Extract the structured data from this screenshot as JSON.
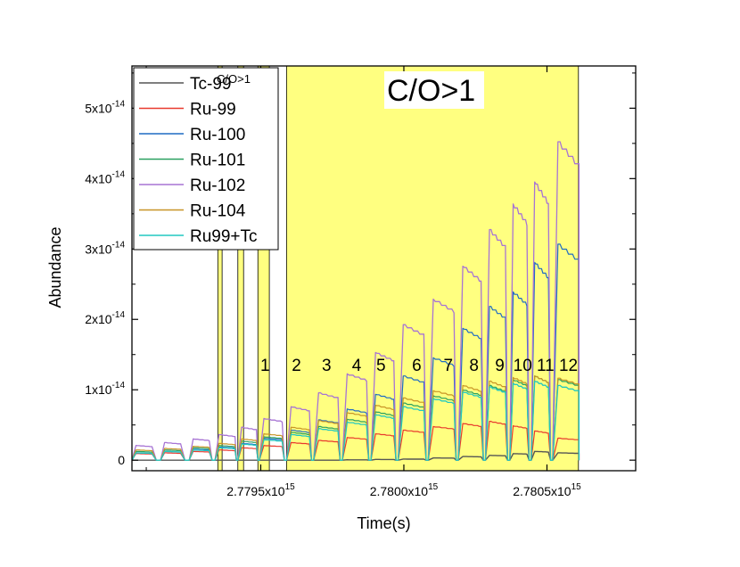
{
  "chart_data": {
    "type": "line",
    "xlabel": "Time(s)",
    "ylabel": "Abundance",
    "xlim": [
      2779050000000000.0,
      2780810000000000.0
    ],
    "ylim": [
      -1.5e-15,
      5.6e-14
    ],
    "x_ticks": [
      {
        "value": 2779500000000000.0,
        "mantissa": "2.7795x10",
        "exp": "15"
      },
      {
        "value": 2780000000000000.0,
        "mantissa": "2.7800x10",
        "exp": "15"
      },
      {
        "value": 2780500000000000.0,
        "mantissa": "2.7805x10",
        "exp": "15"
      }
    ],
    "y_ticks": [
      {
        "value": 0,
        "mantissa": "0",
        "exp": ""
      },
      {
        "value": 1e-14,
        "mantissa": "1x10",
        "exp": "-14"
      },
      {
        "value": 2e-14,
        "mantissa": "2x10",
        "exp": "-14"
      },
      {
        "value": 3e-14,
        "mantissa": "3x10",
        "exp": "-14"
      },
      {
        "value": 4e-14,
        "mantissa": "4x10",
        "exp": "-14"
      },
      {
        "value": 5e-14,
        "mantissa": "5x10",
        "exp": "-14"
      }
    ],
    "shaded_regions": [
      [
        2779350000000000.0,
        2779365000000000.0
      ],
      [
        2779420000000000.0,
        2779440000000000.0
      ],
      [
        2779490000000000.0,
        2779530000000000.0
      ],
      [
        2779590000000000.0,
        2780610000000000.0
      ]
    ],
    "shade_color": "#ffff80",
    "region_annotation": "C/O>1",
    "pulse_labels": [
      "1",
      "2",
      "3",
      "4",
      "5",
      "6",
      "7",
      "8",
      "9",
      "10",
      "11",
      "12"
    ],
    "pulse_label_x": [
      2779515000000000.0,
      2779625000000000.0,
      2779730000000000.0,
      2779835000000000.0,
      2779920000000000.0,
      2780045000000000.0,
      2780155000000000.0,
      2780245000000000.0,
      2780335000000000.0,
      2780415000000000.0,
      2780495000000000.0,
      2780575000000000.0
    ],
    "pulse_label_y": 1.27e-14,
    "pulses": {
      "starts": [
        2779050000000000.0,
        2779150000000000.0,
        2779250000000000.0,
        2779340000000000.0,
        2779420000000000.0,
        2779495000000000.0,
        2779590000000000.0,
        2779685000000000.0,
        2779785000000000.0,
        2779885000000000.0,
        2779980000000000.0,
        2780085000000000.0,
        2780190000000000.0,
        2780285000000000.0,
        2780370000000000.0,
        2780445000000000.0,
        2780520000000000.0
      ],
      "ends": [
        2779120000000000.0,
        2779220000000000.0,
        2779320000000000.0,
        2779410000000000.0,
        2779485000000000.0,
        2779575000000000.0,
        2779670000000000.0,
        2779770000000000.0,
        2779870000000000.0,
        2779965000000000.0,
        2780070000000000.0,
        2780175000000000.0,
        2780270000000000.0,
        2780355000000000.0,
        2780430000000000.0,
        2780505000000000.0,
        2780580000000000.0
      ],
      "end_x": 2780612000000000.0
    },
    "series": [
      {
        "name": "Tc-99",
        "color": "#555555",
        "width": 1.4,
        "levels": [
          0,
          0,
          0,
          0,
          0,
          0,
          0,
          0,
          0.05,
          0.1,
          0.15,
          0.3,
          0.5,
          0.65,
          0.9,
          1.2,
          1.0
        ]
      },
      {
        "name": "Ru-99",
        "color": "#e8392e",
        "width": 1.2,
        "levels": [
          0.9,
          1.0,
          1.2,
          1.4,
          1.7,
          2.0,
          2.4,
          2.7,
          3.1,
          3.6,
          4.1,
          4.6,
          5.0,
          5.3,
          4.7,
          4.0,
          3.0
        ]
      },
      {
        "name": "Ru-100",
        "color": "#1f6cc4",
        "width": 1.2,
        "levels": [
          1.0,
          1.2,
          1.5,
          1.8,
          2.3,
          3.0,
          4.1,
          5.5,
          7.0,
          9.0,
          11.5,
          14.0,
          18.0,
          21.0,
          23.0,
          27.0,
          29.5
        ]
      },
      {
        "name": "Ru-101",
        "color": "#2aa060",
        "width": 1.2,
        "levels": [
          1.2,
          1.4,
          1.7,
          2.0,
          2.6,
          3.2,
          3.8,
          4.6,
          5.6,
          6.6,
          7.8,
          8.8,
          9.6,
          10.2,
          11.0,
          11.5,
          11.0
        ]
      },
      {
        "name": "Ru-102",
        "color": "#a774d4",
        "width": 1.3,
        "levels": [
          2.0,
          2.4,
          2.9,
          3.5,
          4.5,
          5.7,
          7.3,
          9.2,
          11.8,
          14.7,
          18.5,
          22.0,
          26.5,
          31.5,
          35.0,
          38.0,
          43.5
        ]
      },
      {
        "name": "Ru-104",
        "color": "#c89426",
        "width": 1.2,
        "levels": [
          1.4,
          1.6,
          1.9,
          2.3,
          2.9,
          3.6,
          4.5,
          5.4,
          6.5,
          7.5,
          8.5,
          9.5,
          10.2,
          10.8,
          11.3,
          11.5,
          11.2
        ]
      },
      {
        "name": "Ru99+Tc",
        "color": "#22c8c0",
        "width": 1.3,
        "levels": [
          1.0,
          1.2,
          1.4,
          1.7,
          2.2,
          2.8,
          3.5,
          4.3,
          5.2,
          6.2,
          7.3,
          8.4,
          9.3,
          10.0,
          10.5,
          10.8,
          10.2
        ]
      }
    ],
    "legend": {
      "position": "top-left",
      "entries": [
        "Tc-99",
        "Ru-99",
        "Ru-100",
        "Ru-101",
        "Ru-102",
        "Ru-104",
        "Ru99+Tc"
      ],
      "overlay_text": "C/O>1"
    },
    "grid": false
  }
}
